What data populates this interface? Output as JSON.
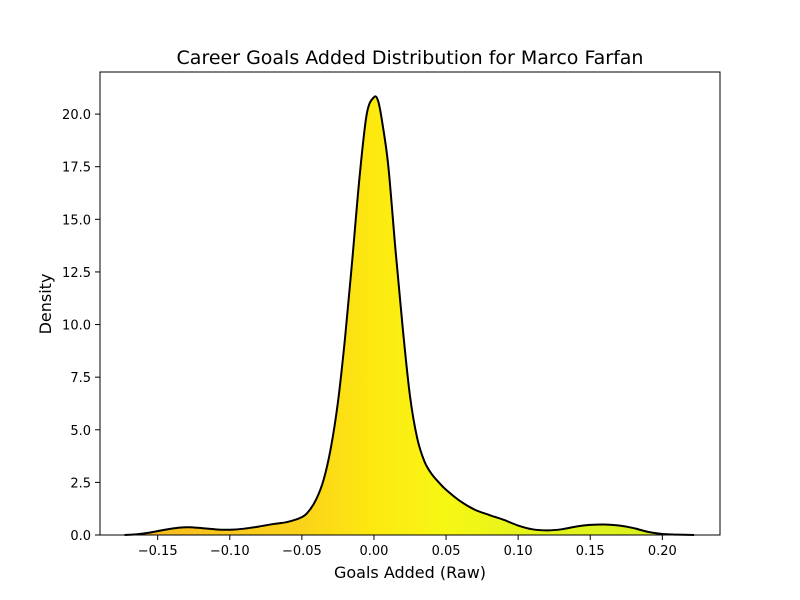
{
  "chart_data": {
    "type": "area",
    "title": "Career Goals Added Distribution for Marco Farfan",
    "xlabel": "Goals Added (Raw)",
    "ylabel": "Density",
    "xlim": [
      -0.19,
      0.24
    ],
    "ylim": [
      0,
      22
    ],
    "x_ticks": [
      -0.15,
      -0.1,
      -0.05,
      0.0,
      0.05,
      0.1,
      0.15,
      0.2
    ],
    "x_tick_labels": [
      "−0.15",
      "−0.10",
      "−0.05",
      "0.00",
      "0.05",
      "0.10",
      "0.15",
      "0.20"
    ],
    "y_ticks": [
      0,
      2.5,
      5,
      7.5,
      10,
      12.5,
      15,
      17.5,
      20
    ],
    "y_tick_labels": [
      "0.0",
      "2.5",
      "5.0",
      "7.5",
      "10.0",
      "12.5",
      "15.0",
      "17.5",
      "20.0"
    ],
    "grid": false,
    "legend": "none",
    "line_color": "#000000",
    "fill_gradient": {
      "stops": [
        {
          "x": -0.173,
          "color": "#f6b820"
        },
        {
          "x": -0.05,
          "color": "#fbd31a"
        },
        {
          "x": 0.0,
          "color": "#fde910"
        },
        {
          "x": 0.05,
          "color": "#f7f714"
        },
        {
          "x": 0.1,
          "color": "#e6f41c"
        },
        {
          "x": 0.222,
          "color": "#d2ef20"
        }
      ]
    },
    "series": [
      {
        "x": [
          -0.173,
          -0.165,
          -0.155,
          -0.145,
          -0.135,
          -0.128,
          -0.12,
          -0.11,
          -0.1,
          -0.09,
          -0.08,
          -0.07,
          -0.06,
          -0.05,
          -0.045,
          -0.04,
          -0.035,
          -0.03,
          -0.025,
          -0.02,
          -0.015,
          -0.01,
          -0.005,
          0.0,
          0.003,
          0.006,
          0.01,
          0.015,
          0.02,
          0.025,
          0.03,
          0.035,
          0.04,
          0.045,
          0.05,
          0.06,
          0.07,
          0.08,
          0.09,
          0.1,
          0.11,
          0.12,
          0.13,
          0.14,
          0.15,
          0.16,
          0.17,
          0.18,
          0.19,
          0.2,
          0.21,
          0.222
        ],
        "y": [
          0.0,
          0.03,
          0.12,
          0.25,
          0.35,
          0.37,
          0.33,
          0.27,
          0.25,
          0.3,
          0.4,
          0.52,
          0.62,
          0.85,
          1.15,
          1.7,
          2.6,
          4.1,
          6.3,
          9.4,
          13.1,
          17.0,
          20.0,
          20.8,
          20.6,
          19.5,
          17.5,
          13.5,
          9.8,
          6.6,
          4.6,
          3.5,
          2.9,
          2.5,
          2.15,
          1.6,
          1.2,
          0.95,
          0.72,
          0.45,
          0.27,
          0.22,
          0.27,
          0.4,
          0.48,
          0.5,
          0.45,
          0.33,
          0.15,
          0.05,
          0.02,
          0.0
        ]
      }
    ]
  }
}
